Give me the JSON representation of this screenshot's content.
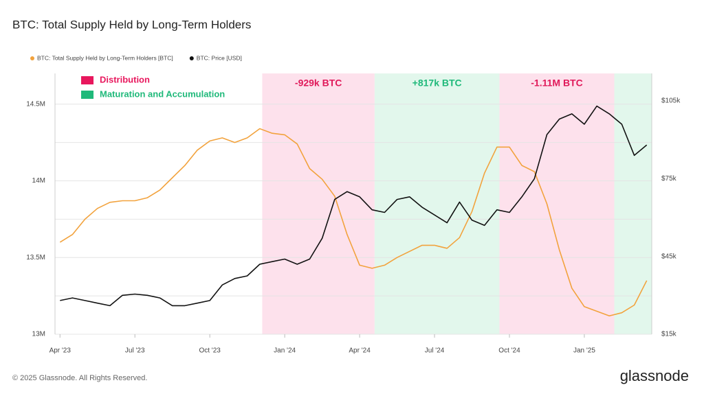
{
  "chart_data": {
    "type": "line",
    "title": "BTC: Total Supply Held by Long-Term Holders",
    "x": [
      0,
      0.5,
      1,
      1.5,
      2,
      2.5,
      3,
      3.5,
      4,
      4.5,
      5,
      5.5,
      6,
      6.5,
      7,
      7.5,
      8,
      8.5,
      9,
      9.5,
      10,
      10.5,
      11,
      11.5,
      12,
      12.5,
      13,
      13.5,
      14,
      14.5,
      15,
      15.5,
      16,
      16.5,
      17,
      17.5,
      18,
      18.5,
      19,
      19.5,
      20,
      20.5,
      21,
      21.5,
      22,
      22.5,
      23,
      23.5
    ],
    "xlim": [
      -0.2,
      23.7
    ],
    "xticks": [
      {
        "value": 0,
        "label": "Apr '23"
      },
      {
        "value": 3,
        "label": "Jul '23"
      },
      {
        "value": 6,
        "label": "Oct '23"
      },
      {
        "value": 9,
        "label": "Jan '24"
      },
      {
        "value": 12,
        "label": "Apr '24"
      },
      {
        "value": 15,
        "label": "Jul '24"
      },
      {
        "value": 18,
        "label": "Oct '24"
      },
      {
        "value": 21,
        "label": "Jan '25"
      }
    ],
    "ylim": [
      13000000,
      14700000
    ],
    "yticks": [
      {
        "value": 13000000,
        "label": "13M"
      },
      {
        "value": 13500000,
        "label": "13.5M"
      },
      {
        "value": 14000000,
        "label": "14M"
      },
      {
        "value": 14500000,
        "label": "14.5M"
      }
    ],
    "yminor": [
      13250000,
      13750000,
      14250000
    ],
    "y2lim": [
      15000,
      115600
    ],
    "y2ticks": [
      {
        "value": 15000,
        "label": "$15k"
      },
      {
        "value": 45000,
        "label": "$45k"
      },
      {
        "value": 75000,
        "label": "$75k"
      },
      {
        "value": 105000,
        "label": "$105k"
      }
    ],
    "grid": true,
    "series": [
      {
        "name": "BTC: Total Supply Held by Long-Term Holders [BTC]",
        "color": "#f2a23c",
        "axis": "y",
        "values": [
          13600000,
          13650000,
          13750000,
          13820000,
          13860000,
          13870000,
          13870000,
          13890000,
          13940000,
          14020000,
          14100000,
          14200000,
          14260000,
          14280000,
          14250000,
          14280000,
          14340000,
          14310000,
          14300000,
          14240000,
          14080000,
          14010000,
          13900000,
          13650000,
          13450000,
          13430000,
          13450000,
          13500000,
          13540000,
          13580000,
          13580000,
          13560000,
          13630000,
          13800000,
          14050000,
          14220000,
          14220000,
          14100000,
          14060000,
          13850000,
          13550000,
          13300000,
          13180000,
          13150000,
          13120000,
          13140000,
          13190000,
          13350000
        ]
      },
      {
        "name": "BTC: Price [USD]",
        "color": "#111111",
        "axis": "y2",
        "values": [
          28000,
          29000,
          28000,
          27000,
          26000,
          30000,
          30500,
          30000,
          29000,
          26000,
          26000,
          27000,
          28000,
          34000,
          36500,
          37500,
          42000,
          43000,
          44000,
          42000,
          44000,
          52000,
          67000,
          70000,
          68000,
          63000,
          62000,
          67000,
          68000,
          64000,
          61000,
          58000,
          66000,
          59000,
          57000,
          63000,
          62000,
          68000,
          75000,
          92000,
          98000,
          100000,
          96000,
          103000,
          100000,
          96000,
          84000,
          88000
        ]
      }
    ],
    "bands": [
      {
        "from": 8.1,
        "to": 12.6,
        "color": "#fde1ec",
        "label": "-929k BTC",
        "label_color": "#e0195a"
      },
      {
        "from": 12.6,
        "to": 17.6,
        "color": "#e2f7ec",
        "label": "+817k BTC",
        "label_color": "#1fb97a"
      },
      {
        "from": 17.6,
        "to": 22.2,
        "color": "#fde1ec",
        "label": "-1.11M BTC",
        "label_color": "#e0195a"
      },
      {
        "from": 22.2,
        "to": 23.7,
        "color": "#e2f7ec"
      }
    ],
    "legend_items": [
      {
        "label": "Distribution",
        "color": "#e8175d"
      },
      {
        "label": "Maturation and Accumulation",
        "color": "#1fb97a"
      }
    ]
  },
  "footer": {
    "copyright": "© 2025 Glassnode. All Rights Reserved.",
    "brand": "glassnode"
  }
}
